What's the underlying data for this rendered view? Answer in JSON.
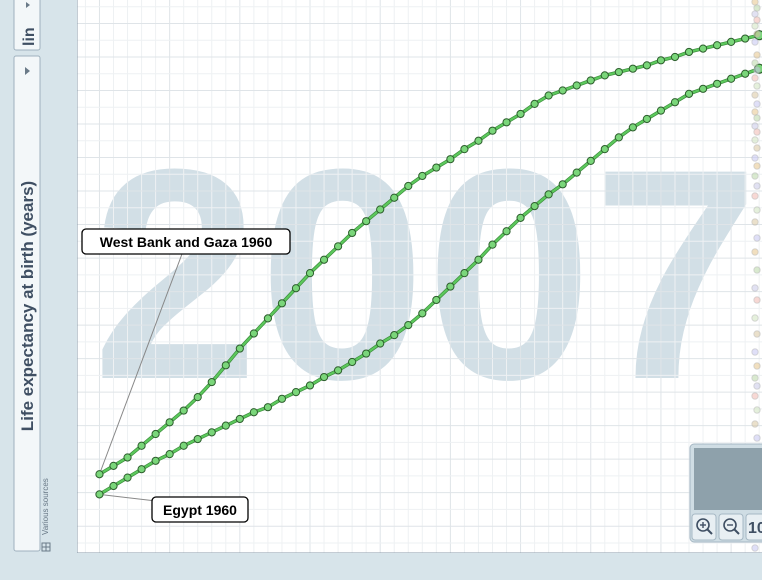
{
  "scale_toggle": {
    "label": "lin"
  },
  "source_note": "Various sources",
  "zoom_panel": {
    "partial_label": "10"
  },
  "chart_data": {
    "type": "line",
    "title": "",
    "ylabel": "Life expectancy at birth (years)",
    "xlabel": "",
    "year_watermark": "2007",
    "xlim": [
      1958.4,
      2007.2
    ],
    "ylim": [
      42.4,
      75.4
    ],
    "x_ticks": [
      1960,
      1965,
      1970,
      1975,
      1980,
      1985,
      1990,
      1995,
      2000,
      2005
    ],
    "y_ticks": [
      44,
      46,
      48,
      50,
      52,
      54,
      56,
      58,
      60,
      62,
      64,
      66,
      68,
      70,
      72,
      74
    ],
    "grid": true,
    "annotations": [
      {
        "text": "West Bank and Gaza 1960",
        "x": 1960,
        "y": 47.1
      },
      {
        "text": "Egypt 1960",
        "x": 1960,
        "y": 45.9
      }
    ],
    "series": [
      {
        "name": "West Bank and Gaza",
        "color": "#5cc85c",
        "x": [
          1960,
          1961,
          1962,
          1963,
          1964,
          1965,
          1966,
          1967,
          1968,
          1969,
          1970,
          1971,
          1972,
          1973,
          1974,
          1975,
          1976,
          1977,
          1978,
          1979,
          1980,
          1981,
          1982,
          1983,
          1984,
          1985,
          1986,
          1987,
          1988,
          1989,
          1990,
          1991,
          1992,
          1993,
          1994,
          1995,
          1996,
          1997,
          1998,
          1999,
          2000,
          2001,
          2002,
          2003,
          2004,
          2005,
          2006,
          2007
        ],
        "values": [
          47.1,
          47.6,
          48.1,
          48.8,
          49.5,
          50.2,
          50.9,
          51.7,
          52.6,
          53.6,
          54.6,
          55.5,
          56.4,
          57.3,
          58.2,
          59.1,
          59.9,
          60.7,
          61.5,
          62.2,
          62.9,
          63.6,
          64.3,
          64.9,
          65.4,
          65.9,
          66.5,
          67.0,
          67.6,
          68.1,
          68.6,
          69.2,
          69.7,
          70.0,
          70.3,
          70.6,
          70.9,
          71.1,
          71.3,
          71.5,
          71.8,
          72.0,
          72.3,
          72.5,
          72.7,
          72.9,
          73.1,
          73.3
        ]
      },
      {
        "name": "Egypt",
        "color": "#5cc85c",
        "x": [
          1960,
          1961,
          1962,
          1963,
          1964,
          1965,
          1966,
          1967,
          1968,
          1969,
          1970,
          1971,
          1972,
          1973,
          1974,
          1975,
          1976,
          1977,
          1978,
          1979,
          1980,
          1981,
          1982,
          1983,
          1984,
          1985,
          1986,
          1987,
          1988,
          1989,
          1990,
          1991,
          1992,
          1993,
          1994,
          1995,
          1996,
          1997,
          1998,
          1999,
          2000,
          2001,
          2002,
          2003,
          2004,
          2005,
          2006,
          2007
        ],
        "values": [
          45.9,
          46.4,
          46.9,
          47.4,
          47.9,
          48.3,
          48.8,
          49.2,
          49.6,
          50.0,
          50.4,
          50.8,
          51.1,
          51.6,
          52.0,
          52.4,
          52.9,
          53.3,
          53.8,
          54.3,
          54.9,
          55.4,
          56.0,
          56.7,
          57.5,
          58.3,
          59.1,
          59.9,
          60.8,
          61.6,
          62.4,
          63.1,
          63.8,
          64.4,
          65.1,
          65.8,
          66.5,
          67.2,
          67.8,
          68.3,
          68.8,
          69.3,
          69.8,
          70.1,
          70.4,
          70.7,
          71.0,
          71.3
        ]
      }
    ]
  }
}
